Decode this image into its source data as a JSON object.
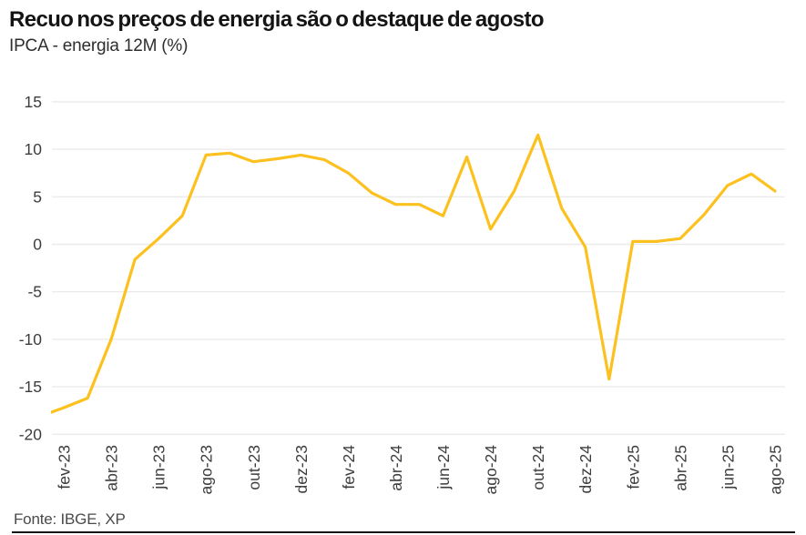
{
  "colors": {
    "line": "#FCC11E",
    "grid": "#ebebeb",
    "axis_text": "#3d3d3d",
    "title_text": "#141414",
    "subtitle_text": "#2e2e2e",
    "source_text": "#4a4a4a",
    "bottom_rule": "#141414",
    "background": "#ffffff"
  },
  "chart_data": {
    "type": "line",
    "title": "Recuo nos preços de energia são o destaque de agosto",
    "subtitle": "IPCA - energia 12M (%)",
    "source": "Fonte: IBGE, XP",
    "series_name": "IPCA - energia 12M (%)",
    "x": [
      "jan-23",
      "fev-23",
      "mar-23",
      "abr-23",
      "mai-23",
      "jun-23",
      "jul-23",
      "ago-23",
      "set-23",
      "out-23",
      "nov-23",
      "dez-23",
      "jan-24",
      "fev-24",
      "mar-24",
      "abr-24",
      "mai-24",
      "jun-24",
      "jul-24",
      "ago-24",
      "set-24",
      "out-24",
      "nov-24",
      "dez-24",
      "jan-25",
      "fev-25",
      "mar-25",
      "abr-25",
      "mai-25",
      "jun-25",
      "jul-25",
      "ago-25"
    ],
    "values": [
      -18.1,
      -17.2,
      -16.2,
      -10.0,
      -1.6,
      0.6,
      3.0,
      9.4,
      9.6,
      8.7,
      9.0,
      9.4,
      8.9,
      7.5,
      5.4,
      4.2,
      4.2,
      3.0,
      9.2,
      1.6,
      5.6,
      11.5,
      3.8,
      -0.3,
      -14.2,
      0.3,
      0.3,
      0.6,
      3.1,
      6.2,
      7.4,
      5.6
    ],
    "x_tick_labels": [
      "fev-23",
      "abr-23",
      "jun-23",
      "ago-23",
      "out-23",
      "dez-23",
      "fev-24",
      "abr-24",
      "jun-24",
      "ago-24",
      "out-24",
      "dez-24",
      "fev-25",
      "abr-25",
      "jun-25",
      "ago-25"
    ],
    "y_ticks": [
      15,
      10,
      5,
      0,
      -5,
      -10,
      -15,
      -20
    ],
    "ylim": [
      -20,
      15
    ],
    "xlabel": "",
    "ylabel": "",
    "grid": "horizontal",
    "legend": "none",
    "x_tick_rotation_deg": 90
  }
}
